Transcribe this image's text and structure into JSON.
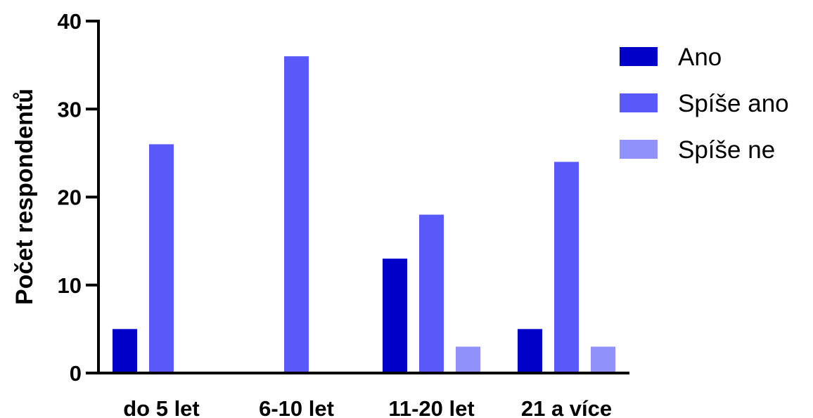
{
  "chart_data": {
    "type": "bar",
    "title": "",
    "xlabel": "",
    "ylabel": "Počet respondentů",
    "ylim": [
      0,
      40
    ],
    "yticks": [
      0,
      10,
      20,
      30,
      40
    ],
    "grid": false,
    "legend_position": "top-right",
    "categories": [
      "do 5 let",
      "6-10 let",
      "11-20 let",
      "21 a více"
    ],
    "series": [
      {
        "name": "Ano",
        "color": "#0000c8",
        "values": [
          5,
          0,
          13,
          5
        ]
      },
      {
        "name": "Spíše ano",
        "color": "#5959fa",
        "values": [
          26,
          36,
          18,
          24
        ]
      },
      {
        "name": "Spíše ne",
        "color": "#9191fb",
        "values": [
          0,
          0,
          3,
          3
        ]
      }
    ]
  }
}
